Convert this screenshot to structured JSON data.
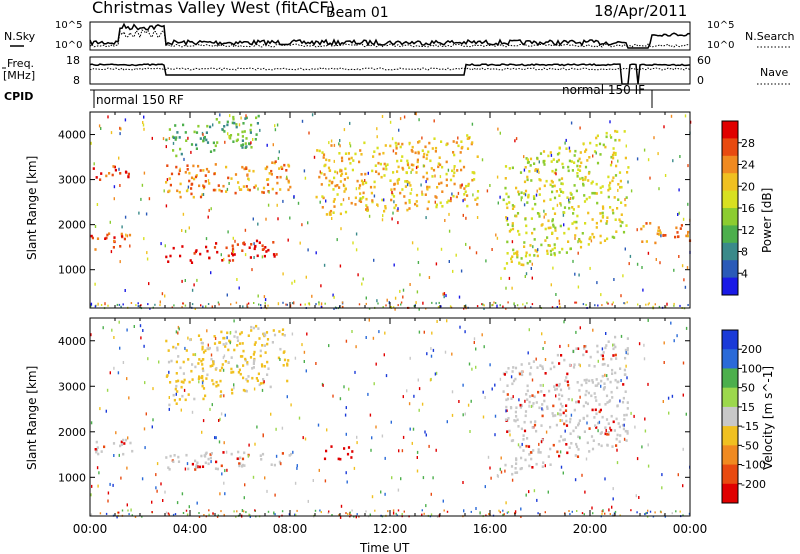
{
  "header": {
    "title": "Christmas Valley West (fitACF)",
    "beam": "Beam 01",
    "date": "18/Apr/2011"
  },
  "panels": {
    "nsky_label": "N.Sky",
    "nsearch_label": "N.Search",
    "log_top": "10^5",
    "log_bottom": "10^0",
    "freq_label_1": "Freq.",
    "freq_label_2": "[MHz]",
    "freq_ticks": [
      "18",
      "8"
    ],
    "nave_label": "Nave",
    "nave_ticks": [
      "60",
      "0"
    ],
    "cpid_label": "CPID",
    "cpid_mode_1": "normal 150 RF",
    "cpid_mode_2": "normal 150 IF"
  },
  "chart_data": [
    {
      "type": "heatmap",
      "title": "",
      "ylabel": "Slant Range [km]",
      "xlabel": "",
      "ylim": [
        150,
        4500
      ],
      "yticks": [
        "1000",
        "2000",
        "3000",
        "4000"
      ],
      "xlim": [
        "00:00",
        "24:00"
      ],
      "colorbar": {
        "label": "Power [dB]",
        "ticks": [
          "4",
          "8",
          "12",
          "16",
          "20",
          "24",
          "28"
        ],
        "colors": [
          "#1a1ae6",
          "#2a5ab8",
          "#3a8a8a",
          "#4caf4c",
          "#8ccc30",
          "#d8e020",
          "#f0c020",
          "#f08a20",
          "#e84a10",
          "#e00000"
        ]
      },
      "structures": [
        {
          "t_start": "00:00",
          "t_end": "01:45",
          "range_km": [
            1450,
            1900
          ],
          "level": "20-24 dB"
        },
        {
          "t_start": "00:00",
          "t_end": "01:45",
          "range_km": [
            3000,
            3400
          ],
          "level": "20-28 dB"
        },
        {
          "t_start": "03:00",
          "t_end": "07:30",
          "range_km": [
            1150,
            1700
          ],
          "level": "24-28 dB"
        },
        {
          "t_start": "03:00",
          "t_end": "08:00",
          "range_km": [
            2600,
            3600
          ],
          "level": "16-24 dB"
        },
        {
          "t_start": "03:00",
          "t_end": "06:45",
          "range_km": [
            3500,
            4500
          ],
          "level": "16-24 dB"
        },
        {
          "t_start": "09:00",
          "t_end": "15:30",
          "range_km": [
            2200,
            4300
          ],
          "level": "4-16 dB"
        },
        {
          "t_start": "16:30",
          "t_end": "21:30",
          "range_km": [
            1000,
            4200
          ],
          "level": "12-24 dB"
        },
        {
          "t_start": "22:00",
          "t_end": "24:00",
          "range_km": [
            1600,
            2200
          ],
          "level": "16-24 dB"
        }
      ]
    },
    {
      "type": "heatmap",
      "title": "",
      "ylabel": "Slant Range [km]",
      "xlabel": "Time UT",
      "ylim": [
        150,
        4500
      ],
      "yticks": [
        "1000",
        "2000",
        "3000",
        "4000"
      ],
      "xticks": [
        "00:00",
        "04:00",
        "08:00",
        "12:00",
        "16:00",
        "20:00",
        "00:00"
      ],
      "colorbar": {
        "label": "Velocity [m s^-1]",
        "ticks": [
          "200",
          "100",
          "50",
          "15",
          "-15",
          "-50",
          "-100",
          "-200"
        ],
        "colors": [
          "#1a3ad8",
          "#2a6ad8",
          "#4caf4c",
          "#9cd84c",
          "#c8c8c8",
          "#f0c020",
          "#f08a20",
          "#e84a10",
          "#e00000"
        ]
      },
      "structures": [
        {
          "t_start": "00:00",
          "t_end": "01:45",
          "range_km": [
            1450,
            1900
          ],
          "level": "-15 to 15 m/s"
        },
        {
          "t_start": "03:00",
          "t_end": "08:00",
          "range_km": [
            1150,
            1700
          ],
          "level": "-15 to 15 m/s"
        },
        {
          "t_start": "03:00",
          "t_end": "08:00",
          "range_km": [
            2600,
            4500
          ],
          "level": "-50 to -15 m/s"
        },
        {
          "t_start": "09:20",
          "t_end": "10:30",
          "range_km": [
            1400,
            1800
          ],
          "level": "-200 m/s"
        },
        {
          "t_start": "16:30",
          "t_end": "21:30",
          "range_km": [
            1000,
            4200
          ],
          "level": "-15 to 15 m/s"
        }
      ]
    }
  ]
}
